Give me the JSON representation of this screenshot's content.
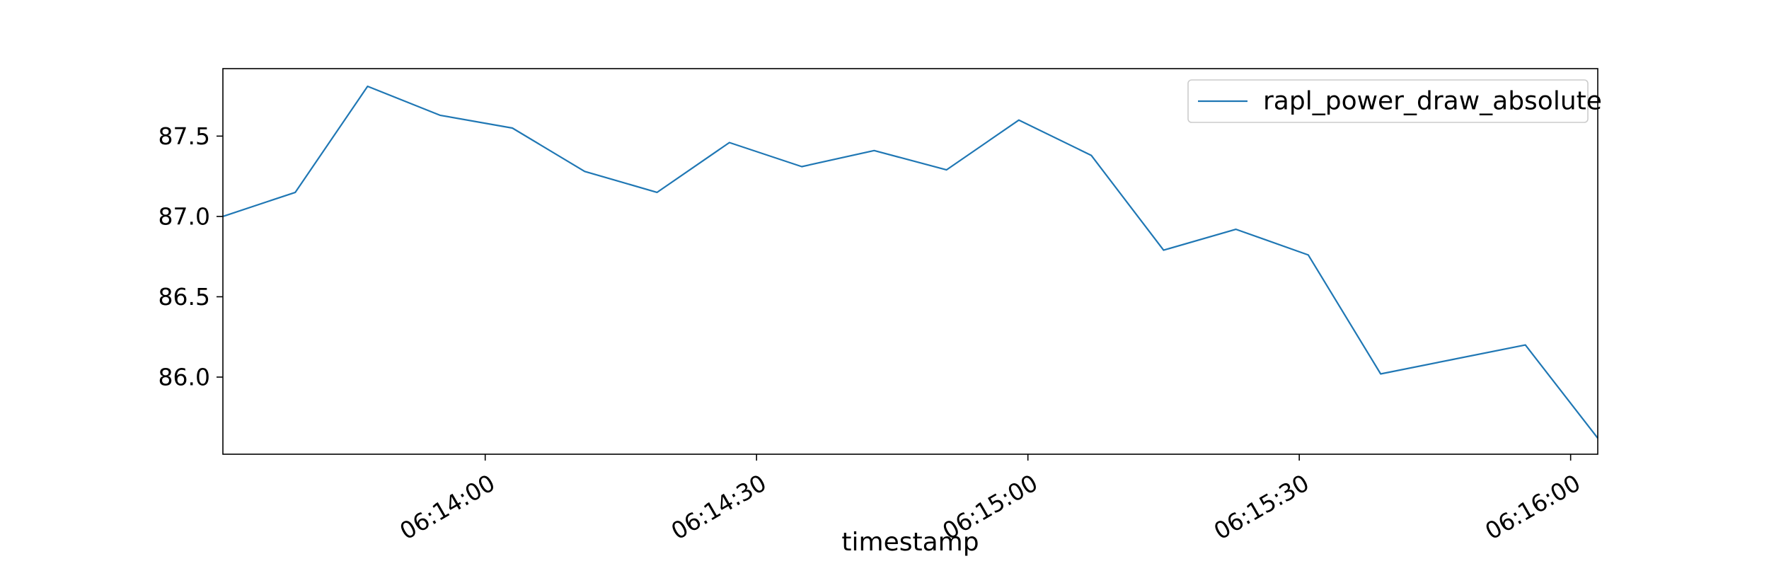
{
  "chart_data": {
    "type": "line",
    "title": "",
    "xlabel": "timestamp",
    "ylabel": "",
    "grid": false,
    "legend_position": "upper right",
    "x_time_start": "06:13:31",
    "x_time_end": "06:16:03",
    "xlim": [
      "06:13:31",
      "06:16:03"
    ],
    "ylim": [
      85.52,
      87.92
    ],
    "x_ticks": [
      "06:14:00",
      "06:14:30",
      "06:15:00",
      "06:15:30",
      "06:16:00"
    ],
    "y_ticks": [
      "86.0",
      "86.5",
      "87.0",
      "87.5"
    ],
    "series": [
      {
        "name": "rapl_power_draw_absolute",
        "color": "#1f77b4",
        "points": [
          {
            "x": "06:13:31",
            "y": 87.0
          },
          {
            "x": "06:13:39",
            "y": 87.15
          },
          {
            "x": "06:13:47",
            "y": 87.81
          },
          {
            "x": "06:13:55",
            "y": 87.63
          },
          {
            "x": "06:14:03",
            "y": 87.55
          },
          {
            "x": "06:14:11",
            "y": 87.28
          },
          {
            "x": "06:14:19",
            "y": 87.15
          },
          {
            "x": "06:14:27",
            "y": 87.46
          },
          {
            "x": "06:14:35",
            "y": 87.31
          },
          {
            "x": "06:14:43",
            "y": 87.41
          },
          {
            "x": "06:14:51",
            "y": 87.29
          },
          {
            "x": "06:14:59",
            "y": 87.6
          },
          {
            "x": "06:15:07",
            "y": 87.38
          },
          {
            "x": "06:15:15",
            "y": 86.79
          },
          {
            "x": "06:15:23",
            "y": 86.92
          },
          {
            "x": "06:15:31",
            "y": 86.76
          },
          {
            "x": "06:15:39",
            "y": 86.02
          },
          {
            "x": "06:15:47",
            "y": 86.11
          },
          {
            "x": "06:15:55",
            "y": 86.2
          },
          {
            "x": "06:16:03",
            "y": 85.62
          }
        ]
      }
    ]
  }
}
